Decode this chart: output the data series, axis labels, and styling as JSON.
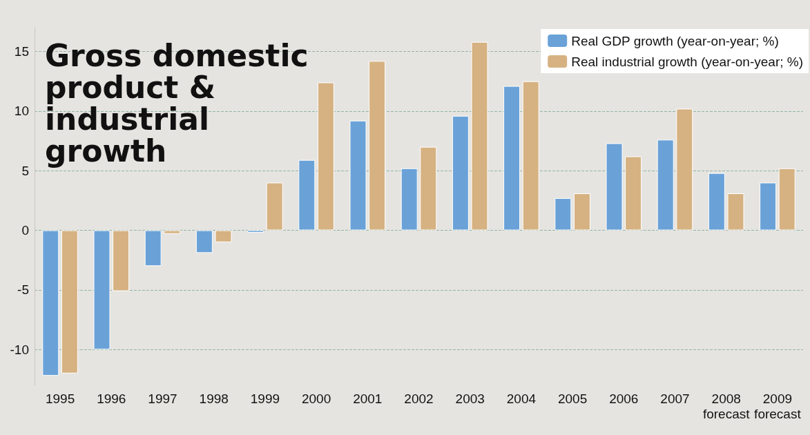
{
  "chart_data": {
    "type": "bar",
    "title": "Gross domestic\nproduct &\nindustrial\ngrowth",
    "categories": [
      "1995",
      "1996",
      "1997",
      "1998",
      "1999",
      "2000",
      "2001",
      "2002",
      "2003",
      "2004",
      "2005",
      "2006",
      "2007",
      "2008\nforecast",
      "2009\nforecast"
    ],
    "series": [
      {
        "name": "Real GDP growth (year-on-year; %)",
        "color": "#6aa2d8",
        "values": [
          -12.2,
          -10,
          -3,
          -1.9,
          -0.2,
          5.9,
          9.2,
          5.2,
          9.6,
          12.1,
          2.7,
          7.3,
          7.6,
          4.8,
          4.0
        ]
      },
      {
        "name": "Real industrial growth (year-on-year; %)",
        "color": "#d6b282",
        "values": [
          -12,
          -5.1,
          -0.3,
          -1.0,
          4.0,
          12.4,
          14.2,
          7.0,
          15.8,
          12.5,
          3.1,
          6.2,
          10.2,
          3.1,
          5.2
        ]
      }
    ],
    "ylim": [
      -13,
      17
    ],
    "yticks": [
      -10,
      -5,
      0,
      5,
      10,
      15
    ],
    "grid": "y",
    "legend": "top right"
  }
}
